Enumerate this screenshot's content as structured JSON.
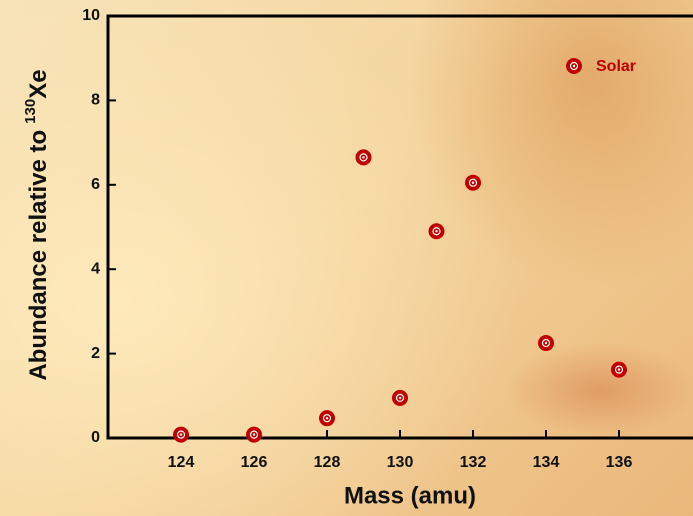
{
  "chart_data": {
    "type": "scatter",
    "x_label": "Mass (amu)",
    "y_label": {
      "text": "Abundance relative to",
      "superscript": "130",
      "element": "Xe"
    },
    "series": [
      {
        "name": "Solar",
        "color": "#c00000",
        "x": [
          124,
          126,
          128,
          129,
          130,
          131,
          132,
          134,
          136
        ],
        "values": [
          0.08,
          0.08,
          0.47,
          6.65,
          0.95,
          4.9,
          6.05,
          2.25,
          1.62
        ]
      }
    ],
    "xlim": [
      122,
      138
    ],
    "xticks": [
      124,
      126,
      128,
      130,
      132,
      134,
      136
    ],
    "ylim": [
      0,
      10
    ],
    "yticks": [
      0,
      2,
      4,
      6,
      8,
      10
    ],
    "legend": "top-right"
  }
}
